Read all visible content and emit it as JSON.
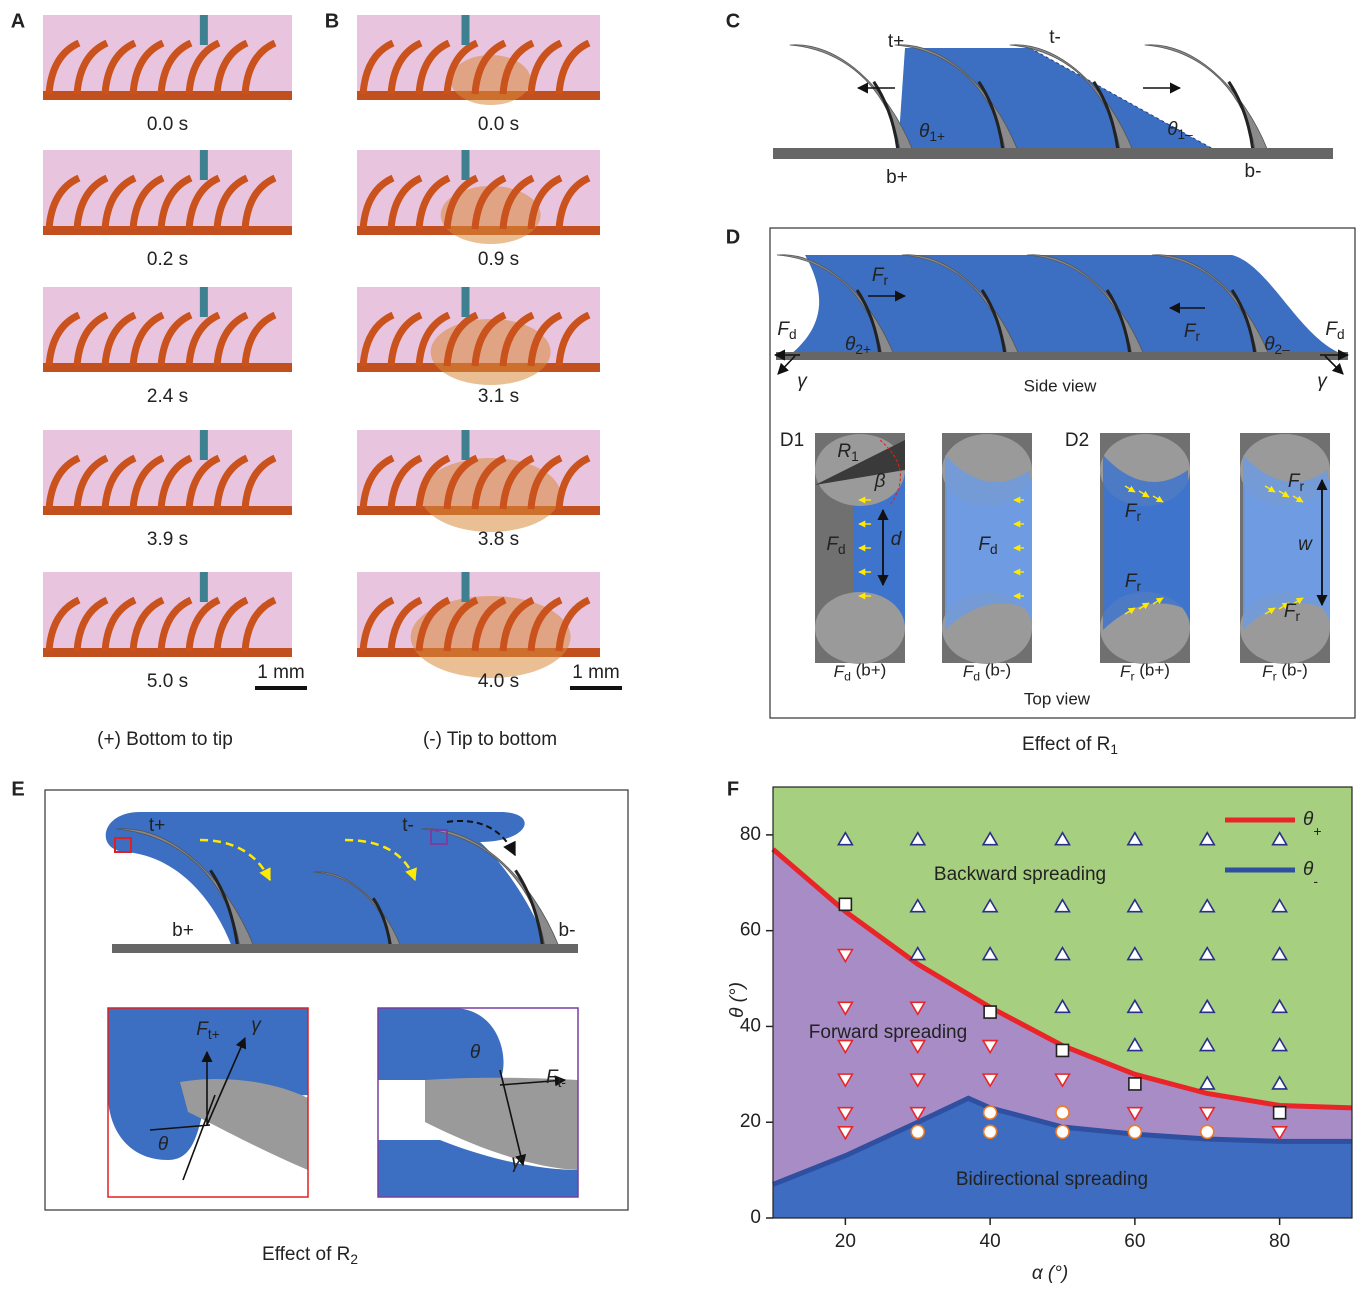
{
  "panels": {
    "A": {
      "letter": "A",
      "times": [
        "0.0 s",
        "0.2 s",
        "2.4 s",
        "3.9 s",
        "5.0 s"
      ],
      "scale": "1 mm",
      "caption": "(+) Bottom to tip"
    },
    "B": {
      "letter": "B",
      "times": [
        "0.0 s",
        "0.9 s",
        "3.1 s",
        "3.8 s",
        "4.0 s"
      ],
      "scale": "1 mm",
      "caption": "(-) Tip to bottom"
    },
    "C": {
      "letter": "C",
      "top_left": "t+",
      "top_right": "t-",
      "bottom_left": "b+",
      "bottom_right": "b-",
      "angle_left": {
        "text": "θ",
        "sub": "1+"
      },
      "angle_right": {
        "text": "θ",
        "sub": "1–"
      }
    },
    "D": {
      "letter": "D",
      "side": {
        "fr_left": {
          "text": "F",
          "sub": "r"
        },
        "fr_right": {
          "text": "F",
          "sub": "r"
        },
        "fd_left": {
          "text": "F",
          "sub": "d"
        },
        "fd_right": {
          "text": "F",
          "sub": "d"
        },
        "angle_left": {
          "text": "θ",
          "sub": "2+"
        },
        "angle_right": {
          "text": "θ",
          "sub": "2–"
        },
        "gamma_left": "γ",
        "gamma_right": "γ",
        "caption": "Side view"
      },
      "d1": "D1",
      "d2": "D2",
      "r1": {
        "text": "R",
        "sub": "1"
      },
      "beta": "β",
      "d": "d",
      "w": "w",
      "tile_labels": [
        {
          "text": "F",
          "sub": "d"
        },
        {
          "text": "F",
          "sub": "d"
        },
        {
          "text": "F",
          "sub": "r"
        },
        {
          "text": "F",
          "sub": "r"
        },
        {
          "text": "F",
          "sub": "r"
        },
        {
          "text": "F",
          "sub": "r"
        }
      ],
      "tile_captions": [
        {
          "text": "F",
          "sub": "d",
          "after": " (b+)"
        },
        {
          "text": "F",
          "sub": "d",
          "after": " (b-)"
        },
        {
          "text": "F",
          "sub": "r",
          "after": " (b+)"
        },
        {
          "text": "F",
          "sub": "r",
          "after": " (b-)"
        }
      ],
      "top_caption": "Top view",
      "caption": {
        "text": "Effect of R",
        "sub": "1"
      }
    },
    "E": {
      "letter": "E",
      "top_left": "t+",
      "top_right": "t-",
      "bottom_left": "b+",
      "bottom_right": "b-",
      "inset_left": {
        "force": {
          "text": "F",
          "sub": "t+"
        },
        "gamma": "γ",
        "angle": "θ"
      },
      "inset_right": {
        "force": {
          "text": "F",
          "sub": "t-"
        },
        "gamma": "γ",
        "angle": "θ"
      },
      "caption": {
        "text": "Effect of R",
        "sub": "2"
      }
    }
  },
  "chart_data": {
    "type": "scatter",
    "panel_label": "F",
    "x_label": "α (°)",
    "y_label": "θ (°)",
    "xlim": [
      10,
      90
    ],
    "ylim": [
      0,
      90
    ],
    "xticks": [
      20,
      40,
      60,
      80
    ],
    "yticks": [
      0,
      20,
      40,
      60,
      80
    ],
    "regions": [
      "Backward spreading",
      "Forward spreading",
      "Bidirectional spreading"
    ],
    "region_colors": [
      "#a6cf80",
      "#a88cc6",
      "#3d6cc0"
    ],
    "lines": [
      {
        "name": "θ",
        "subscript": "+",
        "color": "#e8262a",
        "x": [
          10,
          20,
          30,
          40,
          50,
          60,
          70,
          80,
          90
        ],
        "values": [
          77,
          64,
          53,
          44,
          36,
          30,
          26,
          23.5,
          23
        ]
      },
      {
        "name": "θ",
        "subscript": "-",
        "color": "#2f4fa0",
        "x": [
          10,
          20,
          30,
          37,
          40,
          50,
          60,
          70,
          80,
          90
        ],
        "values": [
          7,
          13,
          20,
          25,
          23,
          19,
          17.5,
          16.5,
          16,
          16
        ]
      }
    ],
    "series": [
      {
        "marker": "triangle-up",
        "color": "#27308a",
        "x": [
          20,
          30,
          30,
          30,
          40,
          40,
          40,
          50,
          50,
          50,
          50,
          60,
          60,
          60,
          60,
          60,
          70,
          70,
          70,
          70,
          70,
          70,
          80,
          80,
          80,
          80,
          80,
          80
        ],
        "values": [
          79,
          79,
          65,
          55,
          79,
          65,
          55,
          79,
          65,
          55,
          44,
          79,
          65,
          55,
          44,
          36,
          79,
          65,
          55,
          44,
          36,
          28,
          79,
          65,
          55,
          44,
          36,
          28
        ]
      },
      {
        "marker": "square",
        "color": "#222222",
        "x": [
          20,
          40,
          50,
          60,
          80
        ],
        "values": [
          65.5,
          43,
          35,
          28,
          22
        ]
      },
      {
        "marker": "triangle-down",
        "color": "#e8262a",
        "x": [
          20,
          20,
          20,
          20,
          20,
          20,
          30,
          30,
          30,
          30,
          40,
          40,
          50,
          60,
          70,
          80
        ],
        "values": [
          55,
          44,
          36,
          29,
          22,
          18,
          44,
          36,
          29,
          22,
          36,
          29,
          29,
          22,
          22,
          18
        ]
      },
      {
        "marker": "circle",
        "color": "#f07a22",
        "x": [
          30,
          40,
          40,
          50,
          50,
          60,
          70
        ],
        "values": [
          18,
          22,
          18,
          22,
          18,
          18,
          18
        ]
      }
    ]
  }
}
